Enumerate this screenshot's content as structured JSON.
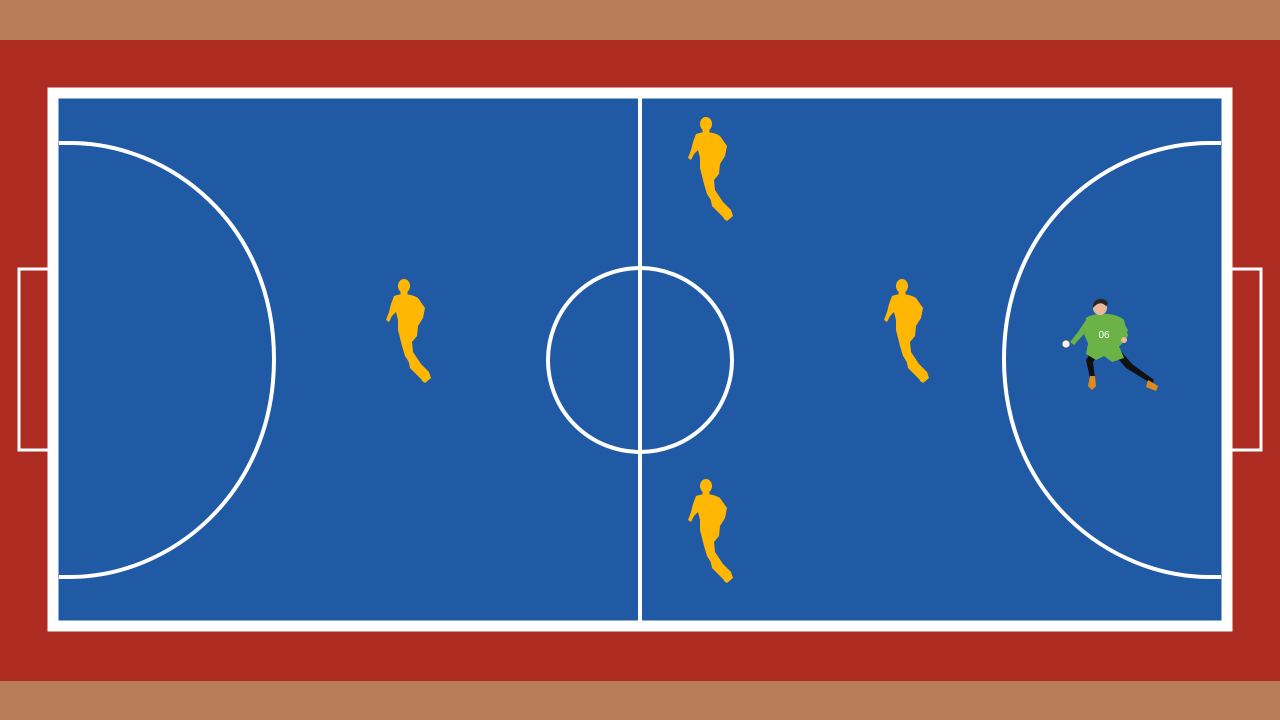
{
  "colors": {
    "surround": "#B77C58",
    "runoff": "#AE2B22",
    "court": "#2059A4",
    "lines": "#FFFFFF",
    "field_player": "#FFB703",
    "goalkeeper_kit": "#6BB247",
    "goalkeeper_socks": "#111111",
    "goalkeeper_boots": "#E08A1E",
    "goalkeeper_skin": "#E9B999",
    "goalkeeper_hair": "#2A2523"
  },
  "court": {
    "type": "futsal",
    "view": "top-down",
    "markings": [
      "touchline",
      "goal-line",
      "halfway-line",
      "center-circle",
      "penalty-area-left",
      "penalty-area-right",
      "goal-left",
      "goal-right"
    ]
  },
  "formation": {
    "field_players": [
      {
        "role": "defender",
        "icon": "running-player-silhouette-icon"
      },
      {
        "role": "wing-top",
        "icon": "running-player-silhouette-icon"
      },
      {
        "role": "wing-bottom",
        "icon": "running-player-silhouette-icon"
      },
      {
        "role": "pivot",
        "icon": "running-player-silhouette-icon"
      }
    ],
    "goalkeeper": {
      "number": "06",
      "icon": "goalkeeper-icon"
    }
  }
}
